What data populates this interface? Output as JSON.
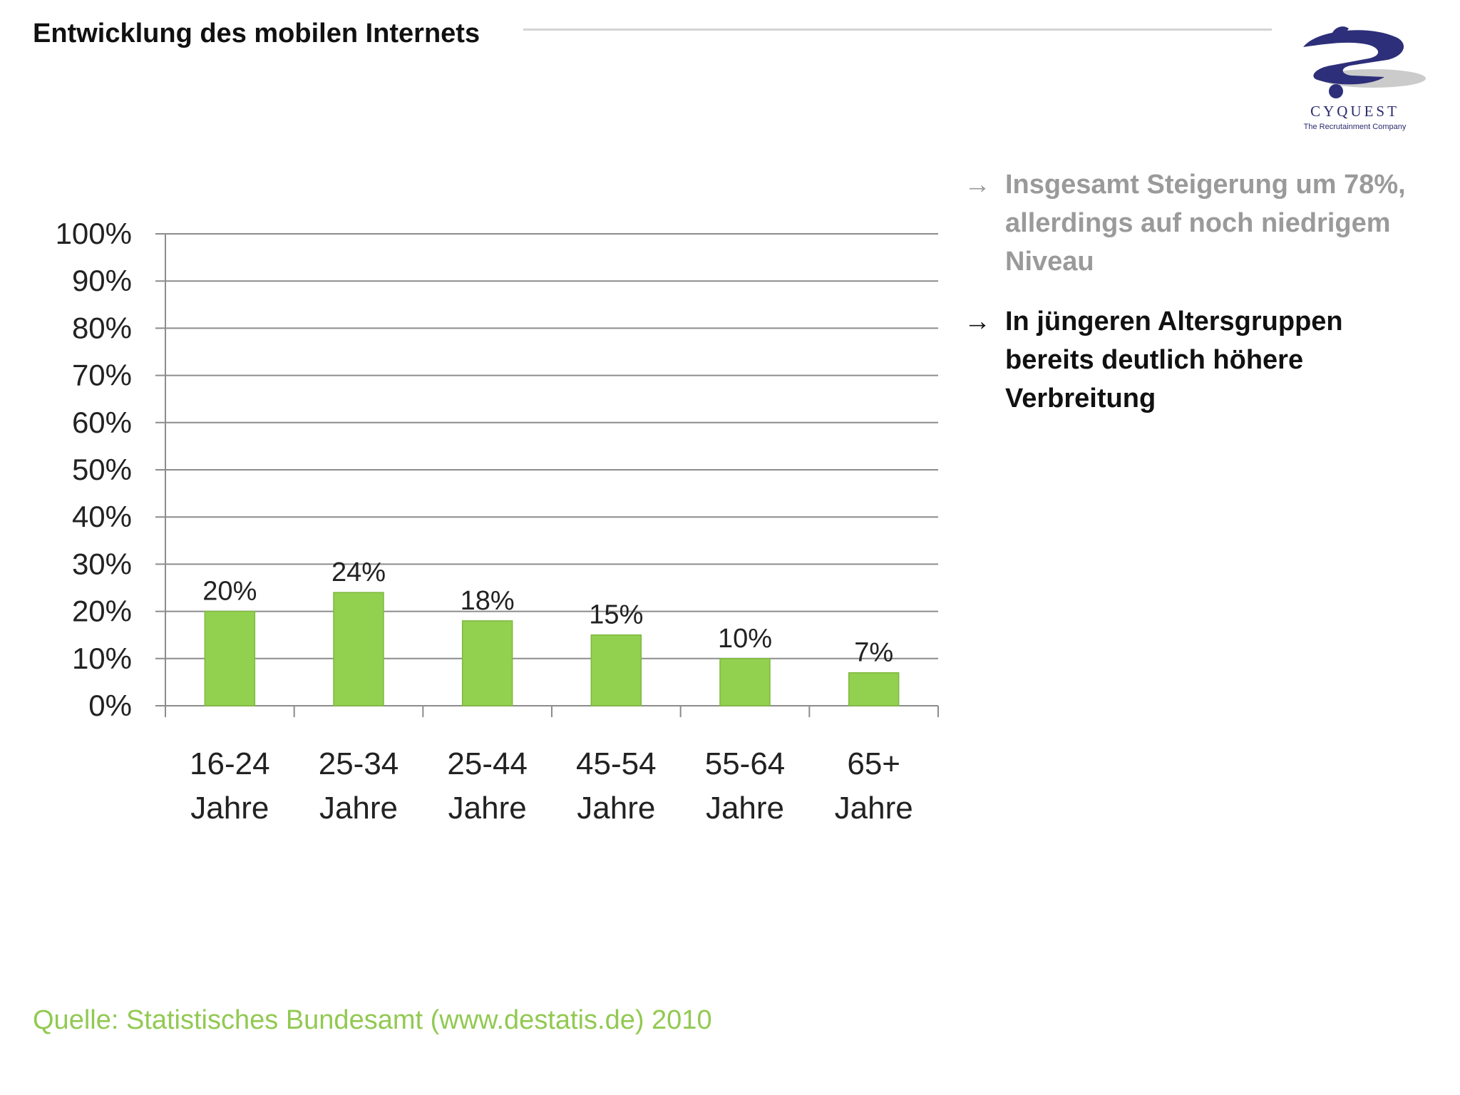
{
  "slide": {
    "title": "Entwicklung des mobilen Internets",
    "source": "Quelle: Statistisches Bundesamt (www.destatis.de) 2010"
  },
  "logo": {
    "name": "CYQUEST",
    "tagline": "The Recrutainment Company",
    "icon": "cyquest-logo-icon"
  },
  "bullets": [
    {
      "arrow": "→",
      "text": "Insgesamt Steigerung um 78%, allerdings auf noch niedrigem Niveau",
      "color": "#9a9a9a"
    },
    {
      "arrow": "→",
      "text": "In jüngeren Altersgruppen bereits deutlich höhere Verbreitung",
      "color": "#111111"
    }
  ],
  "colors": {
    "bar": "#92d050",
    "bar_border": "#7fb83f",
    "grid": "#8c8c8c",
    "source_text": "#92c952"
  },
  "chart_data": {
    "type": "bar",
    "categories": [
      [
        "16-24",
        "Jahre"
      ],
      [
        "25-34",
        "Jahre"
      ],
      [
        "25-44",
        "Jahre"
      ],
      [
        "45-54",
        "Jahre"
      ],
      [
        "55-64",
        "Jahre"
      ],
      [
        "65+",
        "Jahre"
      ]
    ],
    "values": [
      20,
      24,
      18,
      15,
      10,
      7
    ],
    "data_labels": [
      "20%",
      "24%",
      "18%",
      "15%",
      "10%",
      "7%"
    ],
    "yticks": [
      "0%",
      "10%",
      "20%",
      "30%",
      "40%",
      "50%",
      "60%",
      "70%",
      "80%",
      "90%",
      "100%"
    ],
    "ylim": [
      0,
      100
    ],
    "grid": true,
    "legend": "none"
  }
}
